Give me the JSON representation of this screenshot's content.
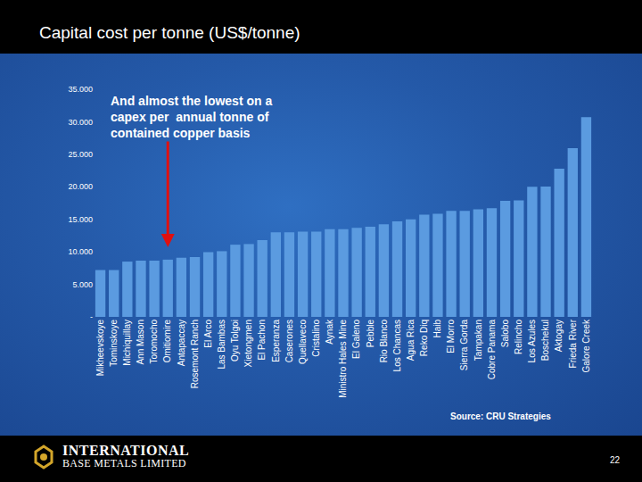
{
  "header": {
    "title": "Capital cost per tonne (US$/tonne)"
  },
  "chart_data": {
    "type": "bar",
    "categories": [
      "Mikheevskoye",
      "Tominskoye",
      "Michiquillay",
      "Ann Mason",
      "Toromocho",
      "Omitiomire",
      "Antapaccay",
      "Rosemont Ranch",
      "El Arco",
      "Las Bambas",
      "Oyu Tolgoi",
      "Xietongmen",
      "El Pachon",
      "Esperanza",
      "Caserones",
      "Quellaveco",
      "Cristalino",
      "Aynak",
      "Ministro Hales Mine",
      "El Galeno",
      "Pebble",
      "Rio Blanco",
      "Los Chancas",
      "Agua Rica",
      "Reko Diq",
      "Haib",
      "El Morro",
      "Sierra Gorda",
      "Tampakan",
      "Cobre Panama",
      "Salobo",
      "Relincho",
      "Los Azules",
      "Boschekul",
      "Aktogay",
      "Frieda River",
      "Galore Creek"
    ],
    "values": [
      7200,
      7200,
      8500,
      8650,
      8650,
      8800,
      9100,
      9200,
      9950,
      10100,
      11100,
      11200,
      11800,
      13000,
      13000,
      13100,
      13100,
      13500,
      13500,
      13700,
      13850,
      14250,
      14700,
      15000,
      15700,
      15850,
      16300,
      16300,
      16550,
      16700,
      17850,
      17900,
      20000,
      20050,
      22800,
      25950,
      30700
    ],
    "color": "#5b9be0",
    "ylim": [
      0,
      35000
    ],
    "yticks": [
      {
        "value": 0,
        "label": "-"
      },
      {
        "value": 5000,
        "label": "5.000"
      },
      {
        "value": 10000,
        "label": "10.000"
      },
      {
        "value": 15000,
        "label": "15.000"
      },
      {
        "value": 20000,
        "label": "20.000"
      },
      {
        "value": 25000,
        "label": "25.000"
      },
      {
        "value": 30000,
        "label": "30.000"
      },
      {
        "value": 35000,
        "label": "35.000"
      }
    ],
    "grid": false,
    "annotations": [
      {
        "lines": [
          "And almost the lowest on a",
          "capex per  annual tonne of",
          "contained copper basis"
        ]
      }
    ]
  },
  "pointer": {
    "category": "Omitiomire",
    "color": "#e01010"
  },
  "source": "Source: CRU Strategies",
  "footer": {
    "company_lines": [
      "INTERNATIONAL",
      "BASE METALS LIMITED"
    ],
    "page": "22"
  }
}
